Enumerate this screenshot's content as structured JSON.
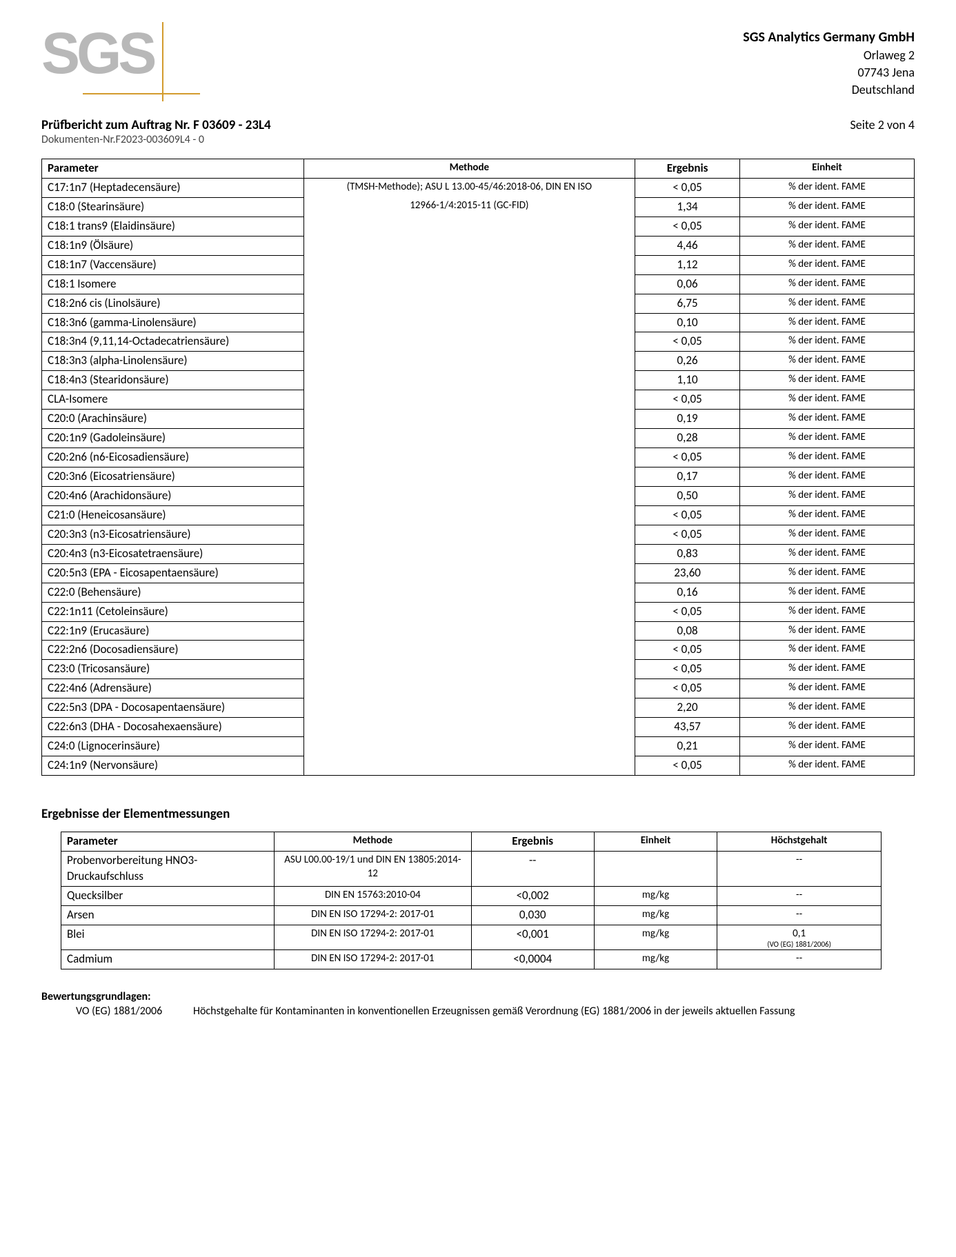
{
  "company": {
    "logo_text": "SGS",
    "name": "SGS Analytics Germany GmbH",
    "street": "Orlaweg 2",
    "city": "07743 Jena",
    "country": "Deutschland"
  },
  "report": {
    "title": "Prüfbericht zum Auftrag Nr. F 03609 - 23L4",
    "doc_nr": "Dokumenten-Nr.F2023-003609L4 - 0",
    "page": "Seite 2 von 4"
  },
  "main_table": {
    "headers": [
      "Parameter",
      "Methode",
      "Ergebnis",
      "Einheit"
    ],
    "method_line1": "(TMSH-Methode); ASU L 13.00-45/46:2018-06, DIN EN ISO",
    "method_line2": "12966-1/4:2015-11 (GC-FID)",
    "unit": "% der ident. FAME",
    "rows": [
      {
        "param": "C17:1n7 (Heptadecensäure)",
        "result": "< 0,05"
      },
      {
        "param": "C18:0 (Stearinsäure)",
        "result": "1,34"
      },
      {
        "param": "C18:1 trans9 (Elaidinsäure)",
        "result": "< 0,05"
      },
      {
        "param": "C18:1n9 (Ölsäure)",
        "result": "4,46"
      },
      {
        "param": "C18:1n7 (Vaccensäure)",
        "result": "1,12"
      },
      {
        "param": "C18:1 Isomere",
        "result": "0,06"
      },
      {
        "param": "C18:2n6 cis (Linolsäure)",
        "result": "6,75"
      },
      {
        "param": "C18:3n6 (gamma-Linolensäure)",
        "result": "0,10"
      },
      {
        "param": "C18:3n4 (9,11,14-Octadecatriensäure)",
        "result": "< 0,05"
      },
      {
        "param": "C18:3n3 (alpha-Linolensäure)",
        "result": "0,26"
      },
      {
        "param": "C18:4n3 (Stearidonsäure)",
        "result": "1,10"
      },
      {
        "param": "CLA-Isomere",
        "result": "< 0,05"
      },
      {
        "param": "C20:0 (Arachinsäure)",
        "result": "0,19"
      },
      {
        "param": "C20:1n9 (Gadoleinsäure)",
        "result": "0,28"
      },
      {
        "param": "C20:2n6 (n6-Eicosadiensäure)",
        "result": "< 0,05"
      },
      {
        "param": "C20:3n6 (Eicosatriensäure)",
        "result": "0,17"
      },
      {
        "param": "C20:4n6 (Arachidonsäure)",
        "result": "0,50"
      },
      {
        "param": "C21:0 (Heneicosansäure)",
        "result": "< 0,05"
      },
      {
        "param": "C20:3n3 (n3-Eicosatriensäure)",
        "result": "< 0,05"
      },
      {
        "param": "C20:4n3 (n3-Eicosatetraensäure)",
        "result": "0,83"
      },
      {
        "param": "C20:5n3 (EPA - Eicosapentaensäure)",
        "result": "23,60"
      },
      {
        "param": "C22:0 (Behensäure)",
        "result": "0,16"
      },
      {
        "param": "C22:1n11 (Cetoleinsäure)",
        "result": "< 0,05"
      },
      {
        "param": "C22:1n9 (Erucasäure)",
        "result": "0,08"
      },
      {
        "param": "C22:2n6 (Docosadiensäure)",
        "result": "< 0,05"
      },
      {
        "param": "C23:0 (Tricosansäure)",
        "result": "< 0,05"
      },
      {
        "param": "C22:4n6 (Adrensäure)",
        "result": "< 0,05"
      },
      {
        "param": "C22:5n3 (DPA - Docosapentaensäure)",
        "result": "2,20"
      },
      {
        "param": "C22:6n3 (DHA - Docosahexaensäure)",
        "result": "43,57"
      },
      {
        "param": "C24:0 (Lignocerinsäure)",
        "result": "0,21"
      },
      {
        "param": "C24:1n9 (Nervonsäure)",
        "result": "< 0,05"
      }
    ]
  },
  "elem_section": {
    "title": "Ergebnisse der Elementmessungen",
    "headers": [
      "Parameter",
      "Methode",
      "Ergebnis",
      "Einheit",
      "Höchstgehalt"
    ],
    "rows": [
      {
        "param": "Probenvorbereitung HNO3-Druckaufschluss",
        "method": "ASU L00.00-19/1 und DIN EN 13805:2014-12",
        "result": "--",
        "unit": "",
        "max": "--",
        "maxnote": ""
      },
      {
        "param": "Quecksilber",
        "method": "DIN EN 15763:2010-04",
        "result": "<0,002",
        "unit": "mg/kg",
        "max": "--",
        "maxnote": ""
      },
      {
        "param": "Arsen",
        "method": "DIN EN ISO 17294-2: 2017-01",
        "result": "0,030",
        "unit": "mg/kg",
        "max": "--",
        "maxnote": ""
      },
      {
        "param": "Blei",
        "method": "DIN EN ISO 17294-2: 2017-01",
        "result": "<0,001",
        "unit": "mg/kg",
        "max": "0,1",
        "maxnote": "(VO (EG) 1881/2006)"
      },
      {
        "param": "Cadmium",
        "method": "DIN EN ISO 17294-2: 2017-01",
        "result": "<0,0004",
        "unit": "mg/kg",
        "max": "--",
        "maxnote": ""
      }
    ]
  },
  "footer": {
    "title": "Bewertungsgrundlagen:",
    "label": "VO (EG) 1881/2006",
    "desc": "Höchstgehalte für Kontaminanten in konventionellen Erzeugnissen gemäß Verordnung (EG) 1881/2006 in der jeweils aktuellen Fassung"
  }
}
